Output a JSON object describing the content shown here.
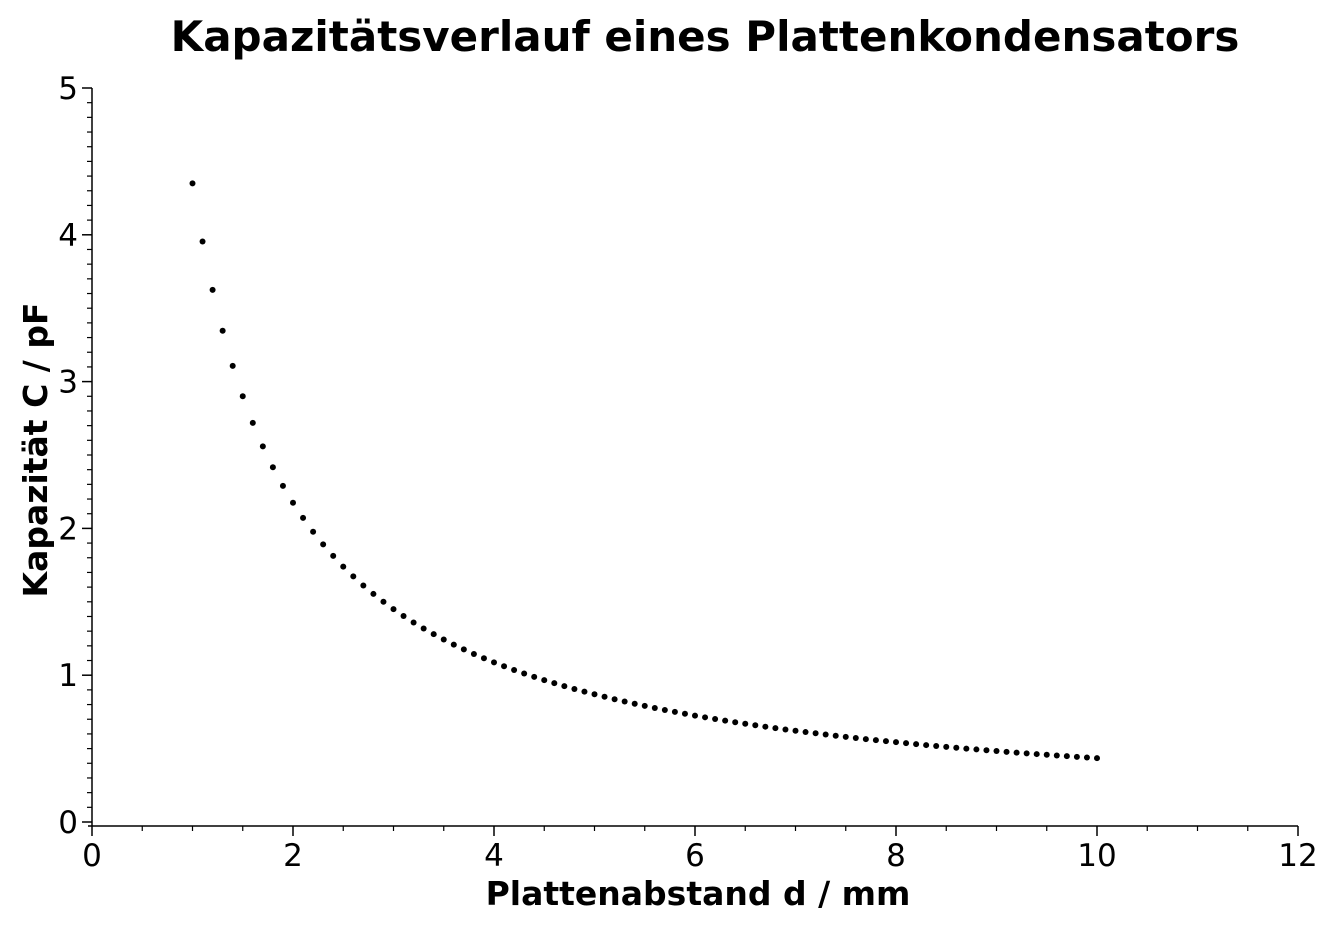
{
  "chart_data": {
    "type": "scatter",
    "title": "Kapazitätsverlauf eines Plattenkondensators",
    "xlabel": "Plattenabstand d  / mm",
    "ylabel": "Kapazität C  / pF",
    "xlim": [
      0,
      12
    ],
    "ylim": [
      0,
      5
    ],
    "x_major_ticks": [
      0,
      2,
      4,
      6,
      8,
      10,
      12
    ],
    "x_minor_step": 0.5,
    "y_major_ticks": [
      0,
      1,
      2,
      3,
      4,
      5
    ],
    "y_minor_step": 0.1,
    "grid": false,
    "marker_color": "#000000",
    "series": [
      {
        "x": [
          1,
          10
        ],
        "x_step": 0.1,
        "C_times_d": 4.35,
        "note_formula_values": [
          4.35,
          0.435
        ]
      }
    ]
  }
}
